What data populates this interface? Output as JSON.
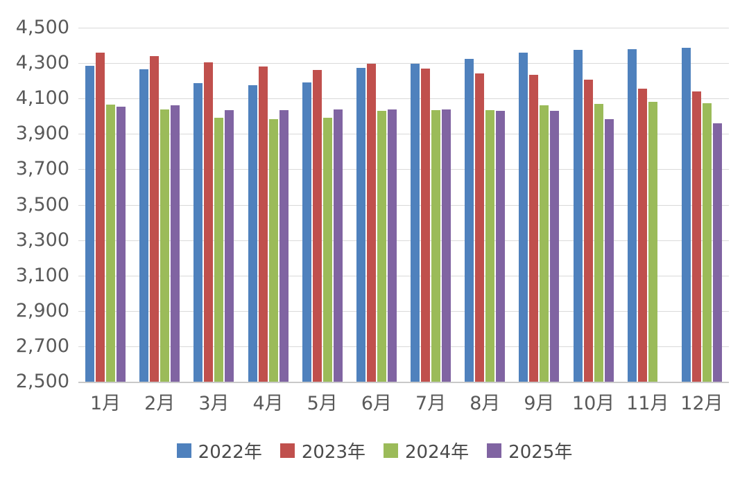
{
  "chart_data": {
    "type": "bar",
    "title": "",
    "xlabel": "",
    "ylabel": "",
    "categories": [
      "1月",
      "2月",
      "3月",
      "4月",
      "5月",
      "6月",
      "7月",
      "8月",
      "9月",
      "10月",
      "11月",
      "12月"
    ],
    "series": [
      {
        "name": "2022年",
        "color": "#4F81BD",
        "values": [
          4285,
          4265,
          4185,
          4175,
          4190,
          4275,
          4295,
          4325,
          4360,
          4375,
          4380,
          4385
        ]
      },
      {
        "name": "2023年",
        "color": "#C0504D",
        "values": [
          4360,
          4340,
          4305,
          4280,
          4260,
          4295,
          4270,
          4240,
          4235,
          4205,
          4155,
          4140
        ]
      },
      {
        "name": "2024年",
        "color": "#9BBB59",
        "values": [
          4065,
          4040,
          3990,
          3985,
          3990,
          4030,
          4035,
          4035,
          4060,
          4070,
          4080,
          4075
        ]
      },
      {
        "name": "2025年",
        "color": "#8064A2",
        "values": [
          4055,
          4060,
          4035,
          4035,
          4040,
          4040,
          4040,
          4030,
          4030,
          3985,
          null,
          3960
        ]
      }
    ],
    "ylim": [
      2500,
      4500
    ],
    "ytick_interval": 200,
    "ytick_labels": [
      "4,500",
      "4,300",
      "4,100",
      "3,900",
      "3,700",
      "3,500",
      "3,300",
      "3,100",
      "2,900",
      "2,700",
      "2,500"
    ],
    "grid": true,
    "legend_position": "bottom",
    "colors": {
      "background": "#FFFFFF",
      "gridline": "#D9D9D9",
      "axis_line": "#C9C9C9",
      "tick_text": "#595959",
      "legend_text": "#4A4A4A"
    }
  }
}
